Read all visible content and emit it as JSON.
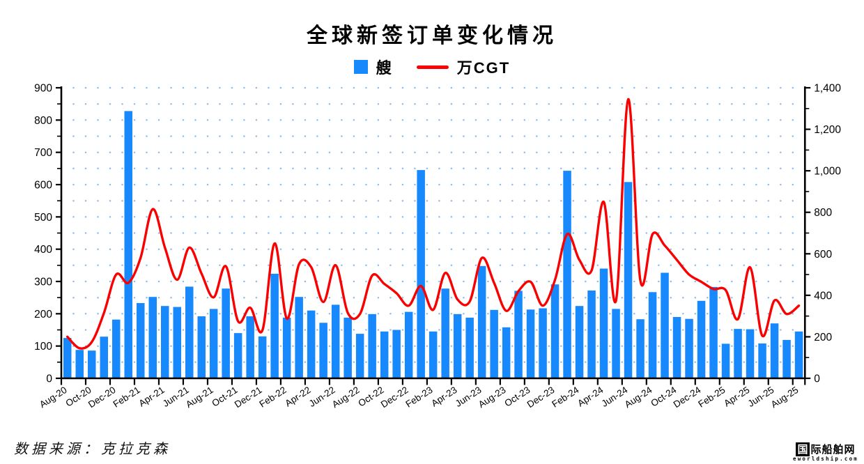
{
  "source_note": "数据来源：克拉克森",
  "watermark": {
    "name_first": "国",
    "name_rest": "际船舶网",
    "domain": "eworldship.com"
  },
  "colors": {
    "bar": "#1789FC",
    "line": "#FA0000",
    "grid_dot": "#8FBCEC",
    "axis": "#000000",
    "background": "#FFFFFF"
  },
  "chart_data": {
    "type": "combo",
    "title": "全球新签订单变化情况",
    "legend_position": "top",
    "grid": {
      "style": "dotted-horizontal",
      "left_axis_interval": 50
    },
    "x": [
      "Aug-20",
      "Sep-20",
      "Oct-20",
      "Nov-20",
      "Dec-20",
      "Jan-21",
      "Feb-21",
      "Mar-21",
      "Apr-21",
      "May-21",
      "Jun-21",
      "Jul-21",
      "Aug-21",
      "Sep-21",
      "Oct-21",
      "Nov-21",
      "Dec-21",
      "Jan-22",
      "Feb-22",
      "Mar-22",
      "Apr-22",
      "May-22",
      "Jun-22",
      "Jul-22",
      "Aug-22",
      "Sep-22",
      "Oct-22",
      "Nov-22",
      "Dec-22",
      "Jan-23",
      "Feb-23",
      "Mar-23",
      "Apr-23",
      "May-23",
      "Jun-23",
      "Jul-23",
      "Aug-23",
      "Sep-23",
      "Oct-23",
      "Nov-23",
      "Dec-23",
      "Jan-24",
      "Feb-24",
      "Mar-24",
      "Apr-24",
      "May-24",
      "Jun-24",
      "Jul-24",
      "Aug-24",
      "Sep-24",
      "Oct-24",
      "Nov-24",
      "Dec-24",
      "Jan-25",
      "Feb-25",
      "Mar-25",
      "Apr-25",
      "May-25",
      "Jun-25",
      "Jul-25",
      "Aug-25"
    ],
    "x_tick_every": 2,
    "series": [
      {
        "name": "艘",
        "type": "bar",
        "axis": "left",
        "values": [
          125,
          88,
          86,
          129,
          182,
          828,
          233,
          252,
          224,
          221,
          284,
          192,
          215,
          278,
          140,
          192,
          130,
          324,
          188,
          252,
          210,
          172,
          228,
          188,
          138,
          199,
          145,
          150,
          206,
          645,
          145,
          278,
          199,
          188,
          348,
          212,
          158,
          271,
          213,
          217,
          291,
          643,
          224,
          272,
          340,
          215,
          608,
          183,
          267,
          327,
          190,
          184,
          240,
          283,
          107,
          153,
          152,
          108,
          170,
          119,
          145
        ]
      },
      {
        "name": "万CGT",
        "type": "line",
        "axis": "right",
        "values": [
          200,
          145,
          175,
          315,
          500,
          460,
          580,
          815,
          630,
          475,
          630,
          505,
          390,
          540,
          275,
          340,
          232,
          650,
          288,
          550,
          535,
          368,
          545,
          315,
          310,
          495,
          455,
          410,
          350,
          445,
          330,
          508,
          380,
          370,
          580,
          460,
          325,
          420,
          465,
          350,
          475,
          695,
          570,
          520,
          850,
          375,
          1345,
          470,
          695,
          640,
          570,
          500,
          465,
          430,
          425,
          285,
          535,
          205,
          375,
          310,
          350
        ]
      }
    ],
    "axes": {
      "left": {
        "min": 0,
        "max": 900,
        "major_step": 100,
        "minor_step": 50,
        "format": "plain"
      },
      "right": {
        "min": 0,
        "max": 1400,
        "major_step": 200,
        "minor_step": 100,
        "format": "thousands-comma"
      }
    }
  }
}
